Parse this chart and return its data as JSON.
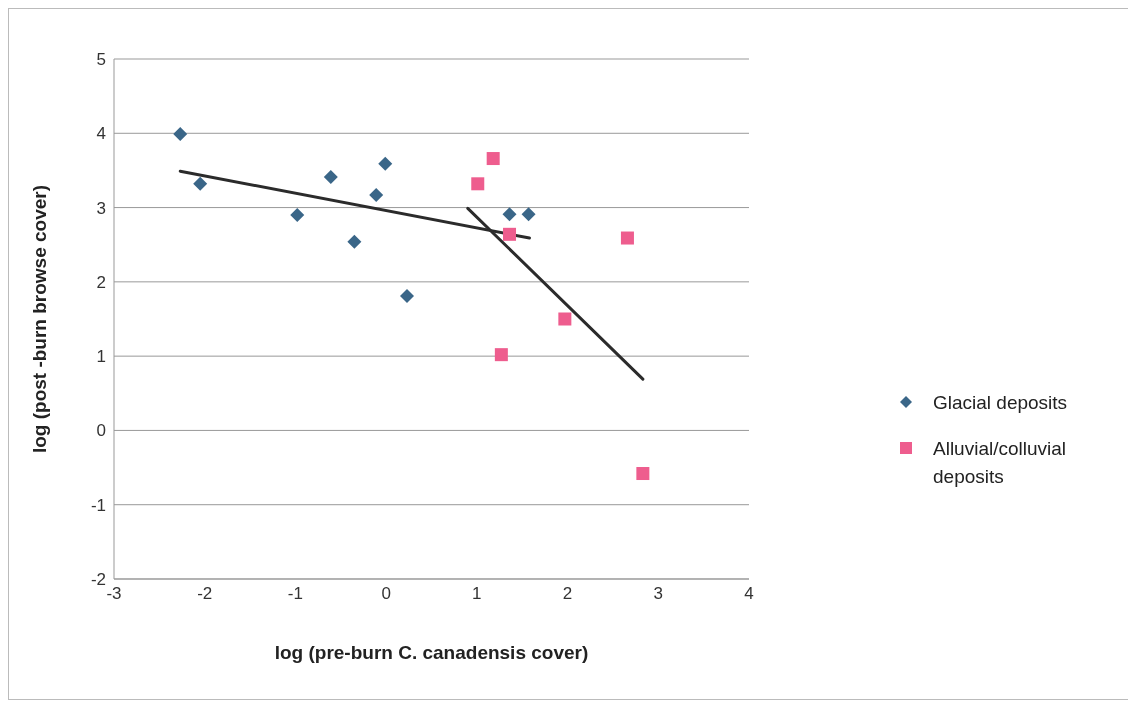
{
  "chart_data": {
    "type": "scatter",
    "xlabel": "log (pre-burn C. canadensis cover)",
    "ylabel": "log (post -burn browse cover)",
    "xlim": [
      -3,
      4
    ],
    "xticks": [
      -3,
      -2,
      -1,
      0,
      1,
      2,
      3,
      4
    ],
    "ylim": [
      -2,
      5
    ],
    "yticks": [
      -2,
      -1,
      0,
      1,
      2,
      3,
      4,
      5
    ],
    "grid": "y",
    "legend": "right",
    "series": [
      {
        "name": "Glacial deposits",
        "color": "#3a6688",
        "marker": "diamond",
        "x": [
          -2.27,
          -2.05,
          -0.61,
          -0.98,
          -0.35,
          -0.11,
          -0.01,
          0.23,
          1.36,
          1.57
        ],
        "values": [
          3.99,
          3.32,
          3.41,
          2.9,
          2.54,
          3.17,
          3.59,
          1.81,
          2.91,
          2.91
        ]
      },
      {
        "name": "Alluvial/colluvial deposits",
        "color": "#ee5d8e",
        "marker": "square",
        "x": [
          1.18,
          1.01,
          1.36,
          2.66,
          1.97,
          1.27,
          2.83
        ],
        "values": [
          3.66,
          3.32,
          2.64,
          2.59,
          1.5,
          1.02,
          -0.58
        ]
      },
      {
        "type": "line",
        "color": "#2b2b2b",
        "marker": "none",
        "x": [
          -2.27,
          1.58
        ],
        "values": [
          3.49,
          2.59
        ]
      },
      {
        "type": "line",
        "color": "#2b2b2b",
        "marker": "none",
        "x": [
          0.9,
          2.83
        ],
        "values": [
          2.99,
          0.69
        ]
      }
    ]
  }
}
